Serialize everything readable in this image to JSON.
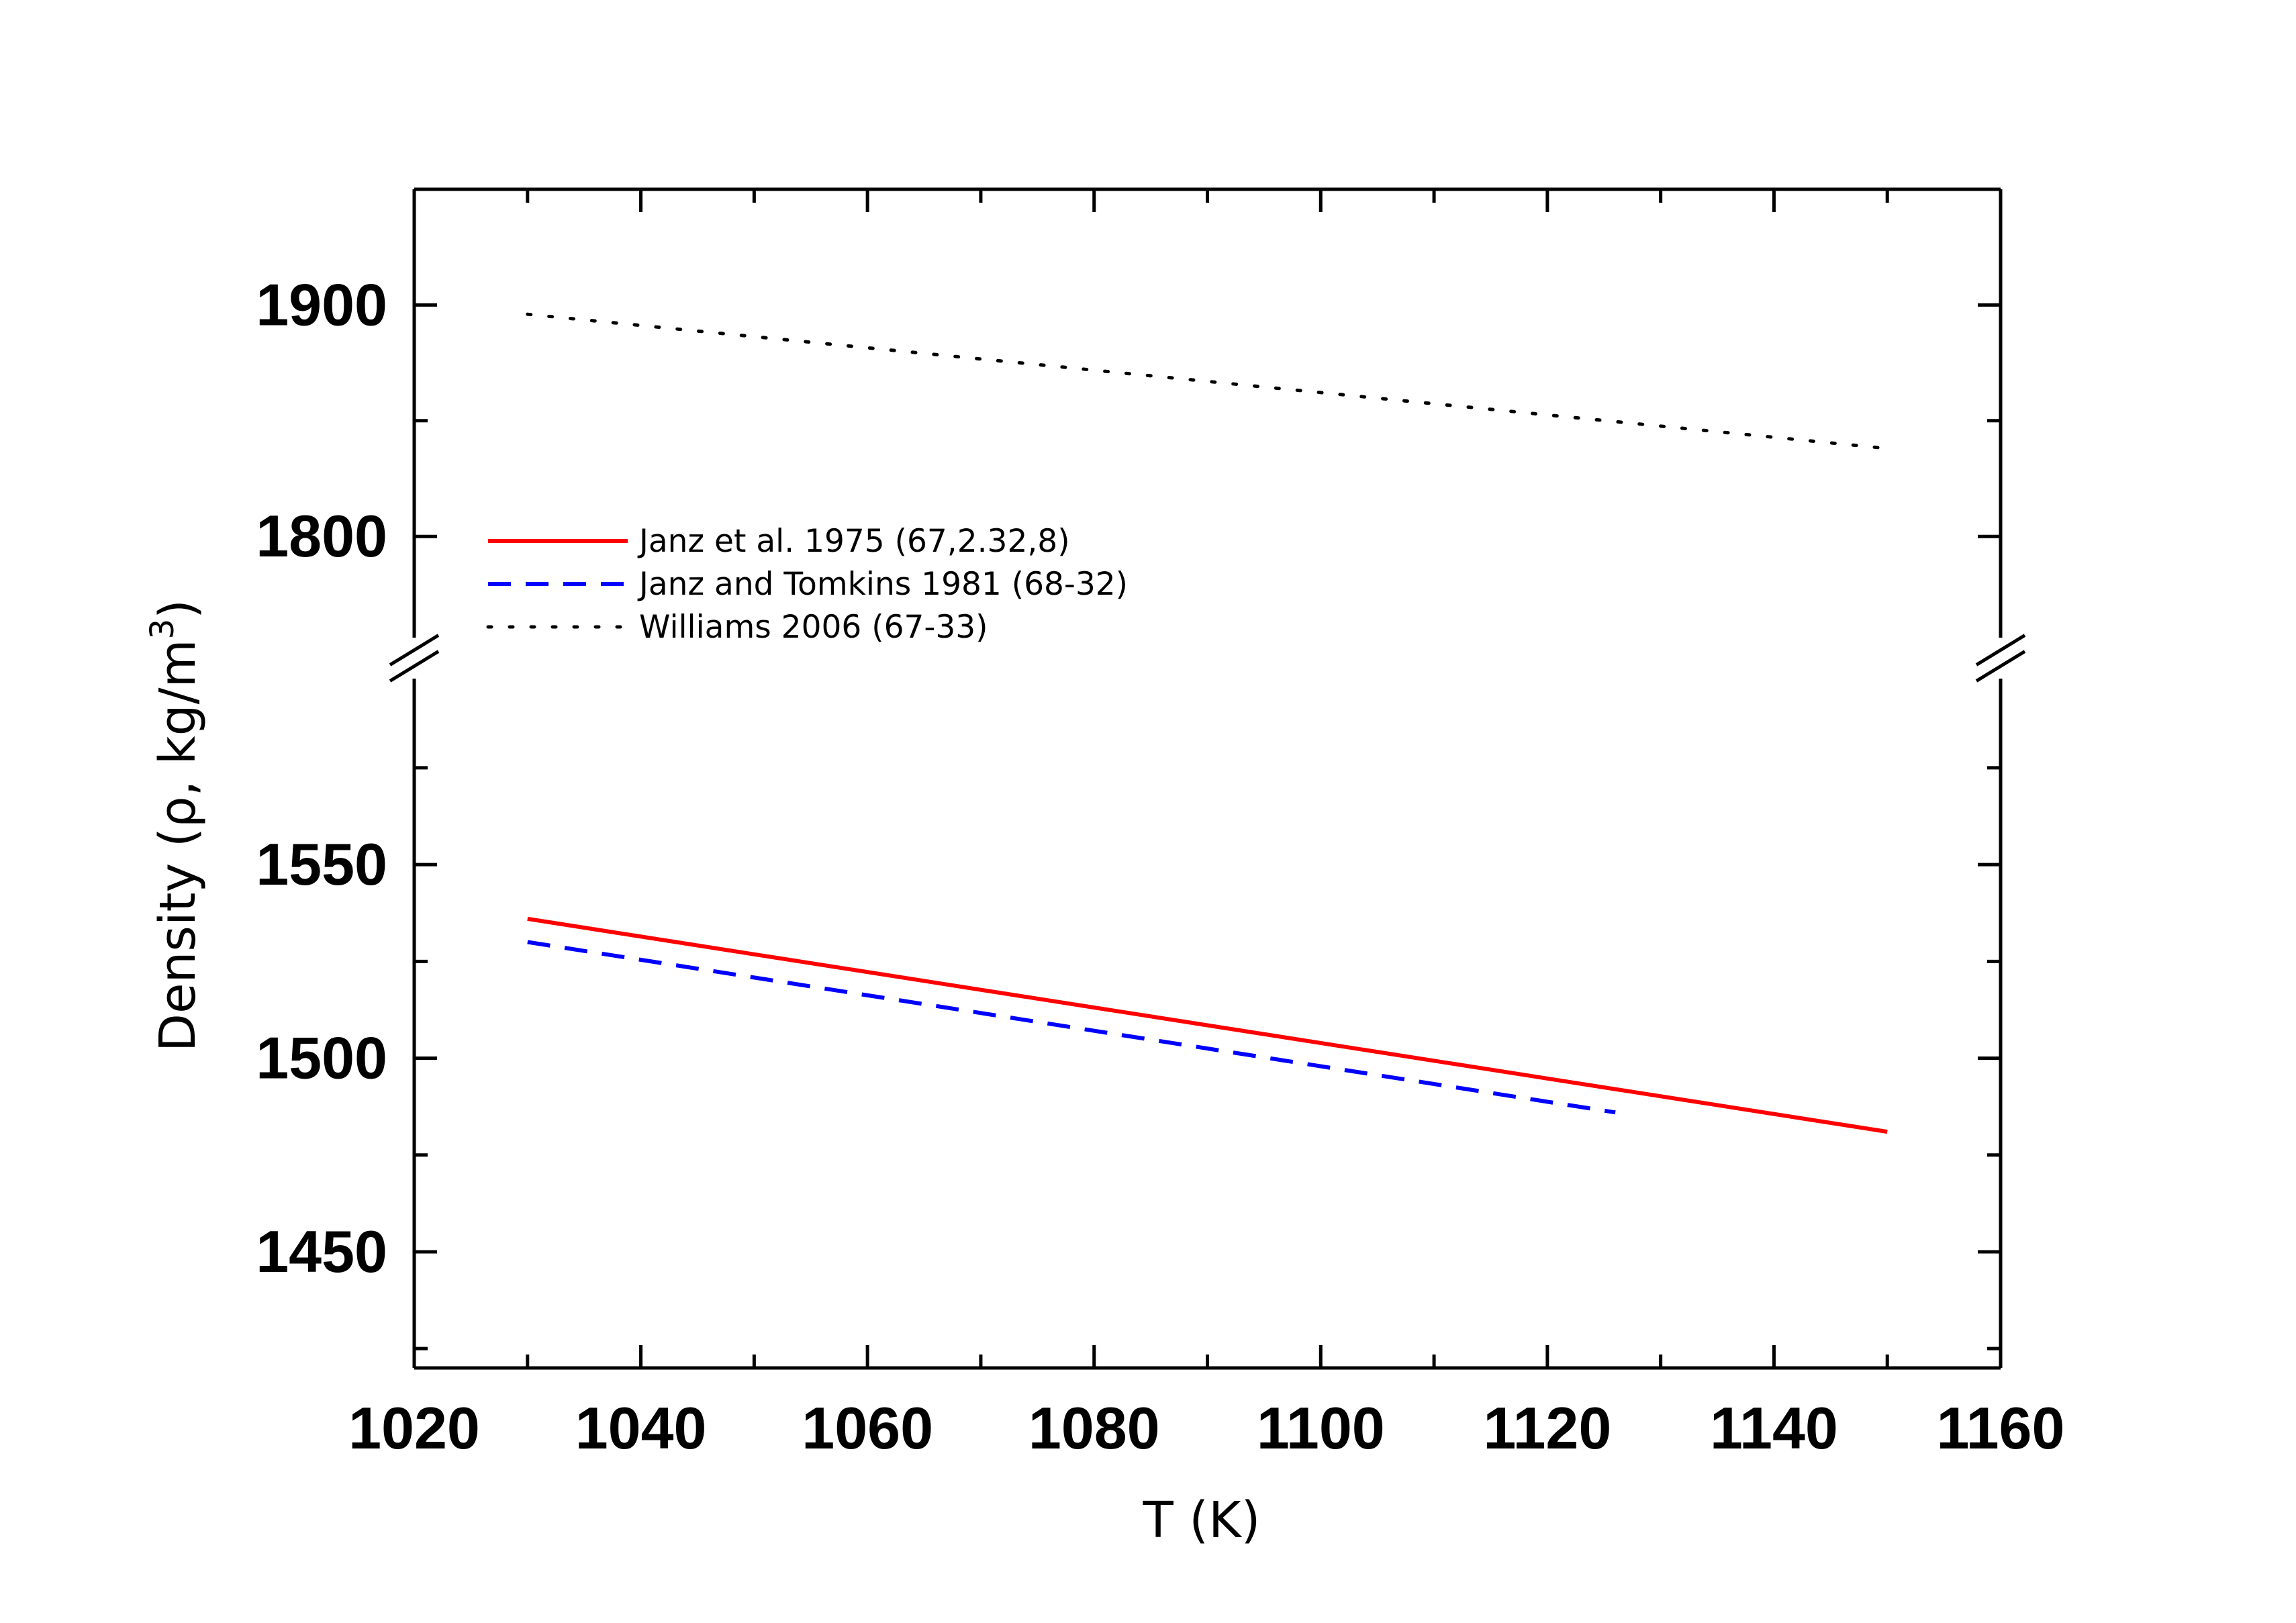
{
  "chart_data": {
    "type": "line",
    "xlabel": "T (K)",
    "ylabel_main": "Density (ρ, kg/m",
    "ylabel_sup": "3",
    "ylabel_close": ")",
    "xlim": [
      1020,
      1160
    ],
    "x_ticks": [
      1020,
      1040,
      1060,
      1080,
      1100,
      1120,
      1140,
      1160
    ],
    "y_axis_break": true,
    "y_segments": [
      {
        "ylim": [
          1420,
          1597
        ],
        "ticks": [
          1450,
          1500,
          1550
        ]
      },
      {
        "ylim": [
          1758,
          1950
        ],
        "ticks": [
          1800,
          1900
        ]
      }
    ],
    "grid": false,
    "legend_placement": "center-left",
    "series": [
      {
        "name": "Janz et al. 1975 (67,2.32,8)",
        "color": "#ff0000",
        "style": "solid",
        "x": [
          1030,
          1150
        ],
        "y": [
          1536,
          1481
        ]
      },
      {
        "name": "Janz and Tomkins 1981 (68-32)",
        "color": "#0000ff",
        "style": "dashed",
        "x": [
          1030,
          1126
        ],
        "y": [
          1530,
          1486
        ]
      },
      {
        "name": "Williams 2006 (67-33)",
        "color": "#000000",
        "style": "dotted",
        "x": [
          1030,
          1150
        ],
        "y": [
          1896,
          1838
        ]
      }
    ]
  }
}
